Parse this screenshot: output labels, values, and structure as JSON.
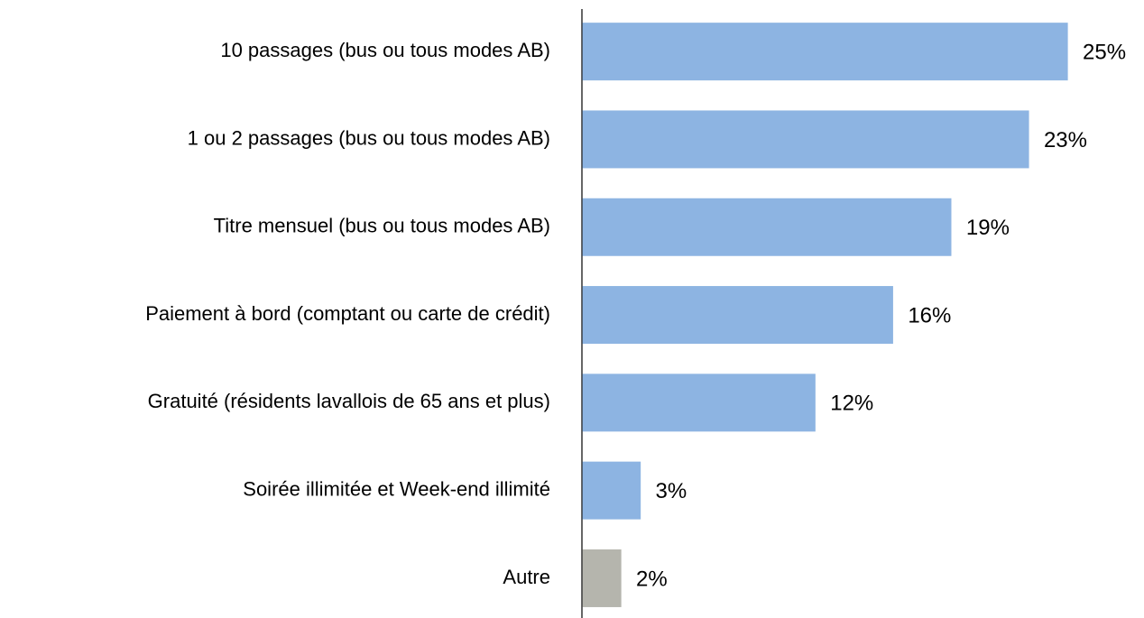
{
  "chart_data": {
    "type": "hbar",
    "categories": [
      "10 passages (bus ou tous modes AB)",
      "1 ou 2 passages (bus ou tous modes AB)",
      "Titre mensuel (bus ou tous modes AB)",
      "Paiement à bord (comptant ou carte de crédit)",
      "Gratuité (résidents lavallois de 65 ans et plus)",
      "Soirée illimitée et Week-end illimité",
      "Autre"
    ],
    "values": [
      25,
      23,
      19,
      16,
      12,
      3,
      2
    ],
    "value_labels": [
      "25%",
      "23%",
      "19%",
      "16%",
      "12%",
      "3%",
      "2%"
    ],
    "colors": [
      "#8db4e2",
      "#8db4e2",
      "#8db4e2",
      "#8db4e2",
      "#8db4e2",
      "#8db4e2",
      "#b5b5ad"
    ]
  }
}
